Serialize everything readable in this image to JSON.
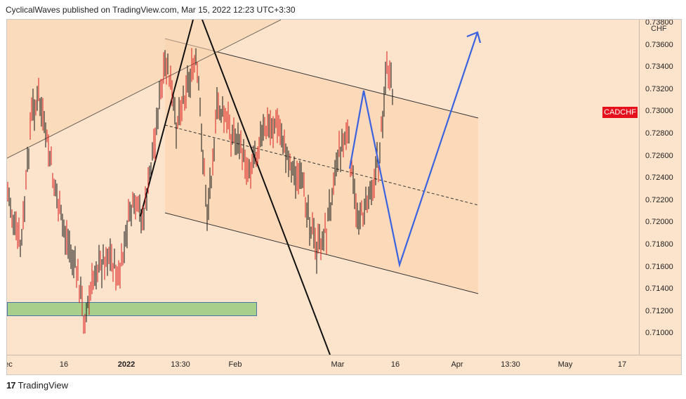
{
  "header": {
    "text": "CyclicalWaves published on TradingView.com, Mar 15, 2022 12:23 UTC+3:30"
  },
  "chart": {
    "symbol": "CADCHF",
    "currency": "CHF",
    "colors": {
      "background": "#fce3cc",
      "channel_fill": "#fbd8b5",
      "candle_up": "#111111",
      "candle_down": "#d91a1a",
      "projection": "#3b63e0",
      "zone": "#a8cf8c",
      "badge": "#e6101c"
    }
  },
  "price_axis": {
    "ticks": [
      "0.73800",
      "0.73600",
      "0.73400",
      "0.73200",
      "0.73000",
      "0.72800",
      "0.72600",
      "0.72400",
      "0.72200",
      "0.72000",
      "0.71800",
      "0.71600",
      "0.71400",
      "0.71200",
      "0.71000"
    ]
  },
  "time_axis": {
    "ticks": [
      {
        "label": "ec",
        "bold": false
      },
      {
        "label": "16",
        "bold": false
      },
      {
        "label": "2022",
        "bold": true
      },
      {
        "label": "13:30",
        "bold": false
      },
      {
        "label": "Feb",
        "bold": false
      },
      {
        "label": "Mar",
        "bold": false
      },
      {
        "label": "16",
        "bold": false
      },
      {
        "label": "Apr",
        "bold": false
      },
      {
        "label": "13:30",
        "bold": false
      },
      {
        "label": "May",
        "bold": false
      },
      {
        "label": "17",
        "bold": false
      }
    ]
  },
  "footer": {
    "logo": "17",
    "brand": "TradingView"
  }
}
